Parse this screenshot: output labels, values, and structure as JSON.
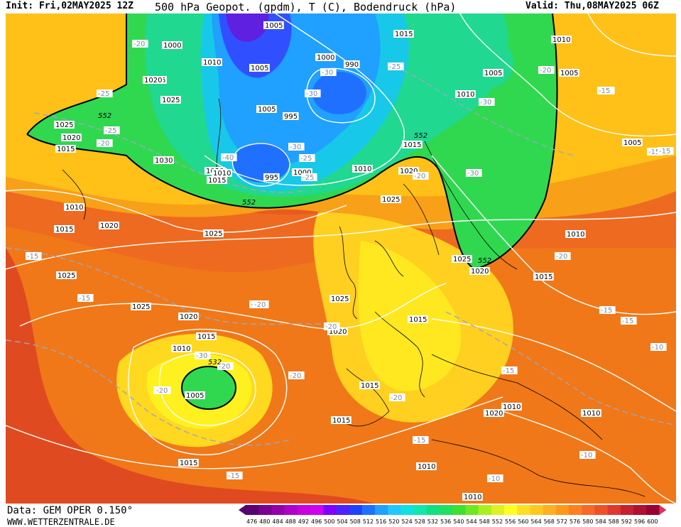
{
  "header": {
    "init": "Init: Fri,02MAY2025 12Z",
    "title": "500 hPa Geopot. (gpdm), T (C), Bodendruck (hPa)",
    "valid": "Valid: Thu,08MAY2025 06Z"
  },
  "footer": {
    "data_source": "Data: GEM OPER 0.150°",
    "website": "WWW.WETTERZENTRALE.DE"
  },
  "legend": {
    "values": [
      "476",
      "480",
      "484",
      "488",
      "492",
      "496",
      "500",
      "504",
      "508",
      "512",
      "516",
      "520",
      "524",
      "528",
      "532",
      "536",
      "540",
      "544",
      "548",
      "552",
      "556",
      "560",
      "564",
      "568",
      "572",
      "576",
      "580",
      "584",
      "588",
      "592",
      "596",
      "600"
    ],
    "colors": [
      "#5a0070",
      "#7a0090",
      "#9400aa",
      "#b000c8",
      "#c800e0",
      "#d000f0",
      "#8000ff",
      "#5020ff",
      "#2040ff",
      "#2070ff",
      "#20a0ff",
      "#20c8ff",
      "#10e0e0",
      "#10e8b0",
      "#10e080",
      "#20e060",
      "#40e030",
      "#70e820",
      "#a8f020",
      "#e0f020",
      "#ffff20",
      "#ffe020",
      "#ffc820",
      "#ffb020",
      "#ff9818",
      "#ff8020",
      "#f86828",
      "#f05028",
      "#e03830",
      "#c82030",
      "#b01030",
      "#980030"
    ]
  },
  "map": {
    "pressure_labels": [
      {
        "text": "1005"
      },
      {
        "text": "1015"
      },
      {
        "text": "1010"
      },
      {
        "text": "1000"
      },
      {
        "text": "990"
      },
      {
        "text": "1005"
      },
      {
        "text": "1000"
      },
      {
        "text": "1010"
      },
      {
        "text": "1015"
      },
      {
        "text": "1020"
      },
      {
        "text": "1025"
      },
      {
        "text": "1005"
      },
      {
        "text": "1010"
      },
      {
        "text": "995"
      },
      {
        "text": "1025"
      },
      {
        "text": "1020"
      },
      {
        "text": "1015"
      },
      {
        "text": "1030"
      },
      {
        "text": "1020"
      },
      {
        "text": "1010"
      },
      {
        "text": "1015"
      },
      {
        "text": "995"
      },
      {
        "text": "1000"
      },
      {
        "text": "1005"
      },
      {
        "text": "1010"
      },
      {
        "text": "1015"
      },
      {
        "text": "1020"
      },
      {
        "text": "1025"
      },
      {
        "text": "1010"
      },
      {
        "text": "1015"
      },
      {
        "text": "1020"
      },
      {
        "text": "1025"
      },
      {
        "text": "1025"
      },
      {
        "text": "1025"
      },
      {
        "text": "1020"
      },
      {
        "text": "1015"
      },
      {
        "text": "1010"
      },
      {
        "text": "1005"
      },
      {
        "text": "1025"
      },
      {
        "text": "1020"
      },
      {
        "text": "1015"
      },
      {
        "text": "1025"
      },
      {
        "text": "1020"
      },
      {
        "text": "1015"
      },
      {
        "text": "1010"
      },
      {
        "text": "1015"
      },
      {
        "text": "1015"
      },
      {
        "text": "1020"
      },
      {
        "text": "1015"
      },
      {
        "text": "1010"
      },
      {
        "text": "1010"
      },
      {
        "text": "1010"
      },
      {
        "text": "1005"
      },
      {
        "text": "1005"
      },
      {
        "text": "1010"
      }
    ],
    "temp_labels": [
      {
        "text": "-20"
      },
      {
        "text": "-25"
      },
      {
        "text": "-25"
      },
      {
        "text": "-20"
      },
      {
        "text": "-30"
      },
      {
        "text": "-25"
      },
      {
        "text": "-30"
      },
      {
        "text": "-30"
      },
      {
        "text": "-20"
      },
      {
        "text": "-15"
      },
      {
        "text": "-25"
      },
      {
        "text": "-30"
      },
      {
        "text": "-40"
      },
      {
        "text": "-25"
      },
      {
        "text": "-20"
      },
      {
        "text": "-30"
      },
      {
        "text": "-15"
      },
      {
        "text": "-15"
      },
      {
        "text": "-15"
      },
      {
        "text": "-20"
      },
      {
        "text": "-20"
      },
      {
        "text": "-20"
      },
      {
        "text": "-20"
      },
      {
        "text": "-20"
      },
      {
        "text": "-30"
      },
      {
        "text": "-20"
      },
      {
        "text": "-15"
      },
      {
        "text": "-15"
      },
      {
        "text": "-20"
      },
      {
        "text": "-10"
      },
      {
        "text": "-15"
      },
      {
        "text": "-15"
      },
      {
        "text": "-10"
      },
      {
        "text": "-10"
      },
      {
        "text": "-15"
      },
      {
        "text": "-20"
      },
      {
        "text": "-15"
      },
      {
        "text": "-15"
      },
      {
        "text": "-20"
      }
    ],
    "geopot_labels": [
      {
        "text": "552"
      },
      {
        "text": "552"
      },
      {
        "text": "552"
      },
      {
        "text": "552"
      },
      {
        "text": "532"
      }
    ]
  }
}
